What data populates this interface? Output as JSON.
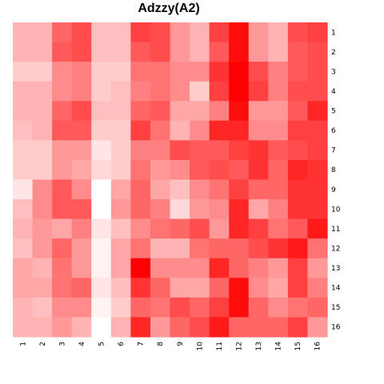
{
  "chart_data": {
    "type": "heatmap",
    "title": "Adzzy(A2)",
    "xlabel": "",
    "ylabel": "",
    "x_categories": [
      "1",
      "2",
      "3",
      "4",
      "5",
      "6",
      "7",
      "8",
      "9",
      "10",
      "11",
      "12",
      "13",
      "14",
      "15",
      "16"
    ],
    "y_categories": [
      "1",
      "2",
      "3",
      "4",
      "5",
      "6",
      "7",
      "8",
      "9",
      "10",
      "11",
      "12",
      "13",
      "14",
      "15",
      "16"
    ],
    "value_range": [
      0,
      1
    ],
    "color_scale": {
      "low": "#ffffff",
      "high": "#ff0000"
    },
    "legend": "none",
    "grid": false,
    "values": [
      [
        0.3,
        0.3,
        0.6,
        0.7,
        0.25,
        0.25,
        0.75,
        0.7,
        0.4,
        0.3,
        0.75,
        0.95,
        0.4,
        0.3,
        0.7,
        0.75
      ],
      [
        0.3,
        0.3,
        0.65,
        0.7,
        0.25,
        0.25,
        0.65,
        0.7,
        0.4,
        0.3,
        0.65,
        0.95,
        0.4,
        0.3,
        0.65,
        0.7
      ],
      [
        0.2,
        0.2,
        0.45,
        0.5,
        0.2,
        0.2,
        0.55,
        0.55,
        0.45,
        0.45,
        0.8,
        1.0,
        0.7,
        0.5,
        0.65,
        0.7
      ],
      [
        0.3,
        0.3,
        0.45,
        0.5,
        0.2,
        0.25,
        0.5,
        0.55,
        0.45,
        0.2,
        0.75,
        1.0,
        0.75,
        0.5,
        0.7,
        0.7
      ],
      [
        0.3,
        0.3,
        0.6,
        0.7,
        0.25,
        0.25,
        0.6,
        0.65,
        0.35,
        0.35,
        0.5,
        0.95,
        0.4,
        0.4,
        0.65,
        0.85
      ],
      [
        0.25,
        0.3,
        0.65,
        0.65,
        0.2,
        0.2,
        0.75,
        0.55,
        0.3,
        0.45,
        0.85,
        0.85,
        0.45,
        0.45,
        0.75,
        0.75
      ],
      [
        0.2,
        0.2,
        0.4,
        0.4,
        0.1,
        0.2,
        0.5,
        0.5,
        0.7,
        0.65,
        0.65,
        0.75,
        0.8,
        0.65,
        0.7,
        0.75
      ],
      [
        0.2,
        0.2,
        0.4,
        0.35,
        0.15,
        0.2,
        0.55,
        0.4,
        0.45,
        0.65,
        0.7,
        0.65,
        0.8,
        0.6,
        0.85,
        0.8
      ],
      [
        0.1,
        0.45,
        0.65,
        0.45,
        0.0,
        0.35,
        0.6,
        0.35,
        0.25,
        0.45,
        0.55,
        0.75,
        0.6,
        0.6,
        0.8,
        0.8
      ],
      [
        0.25,
        0.45,
        0.65,
        0.65,
        0.0,
        0.4,
        0.6,
        0.5,
        0.15,
        0.4,
        0.45,
        0.85,
        0.35,
        0.5,
        0.8,
        0.8
      ],
      [
        0.3,
        0.4,
        0.35,
        0.5,
        0.1,
        0.25,
        0.45,
        0.55,
        0.6,
        0.7,
        0.4,
        0.85,
        0.75,
        0.55,
        0.65,
        0.9
      ],
      [
        0.25,
        0.4,
        0.6,
        0.4,
        0.05,
        0.35,
        0.55,
        0.3,
        0.3,
        0.55,
        0.6,
        0.6,
        0.7,
        0.8,
        0.9,
        0.55
      ],
      [
        0.35,
        0.3,
        0.55,
        0.4,
        0.05,
        0.35,
        1.0,
        0.45,
        0.45,
        0.45,
        0.85,
        0.6,
        0.5,
        0.4,
        0.75,
        0.4
      ],
      [
        0.35,
        0.35,
        0.55,
        0.6,
        0.1,
        0.25,
        0.8,
        0.6,
        0.35,
        0.35,
        0.6,
        0.95,
        0.45,
        0.35,
        0.75,
        0.5
      ],
      [
        0.3,
        0.25,
        0.45,
        0.45,
        0.05,
        0.2,
        0.6,
        0.55,
        0.7,
        0.6,
        0.75,
        0.95,
        0.6,
        0.45,
        0.55,
        0.6
      ],
      [
        0.3,
        0.3,
        0.4,
        0.3,
        0.0,
        0.3,
        0.85,
        0.4,
        0.6,
        0.7,
        0.9,
        0.6,
        0.6,
        0.6,
        0.75,
        0.4
      ]
    ]
  }
}
